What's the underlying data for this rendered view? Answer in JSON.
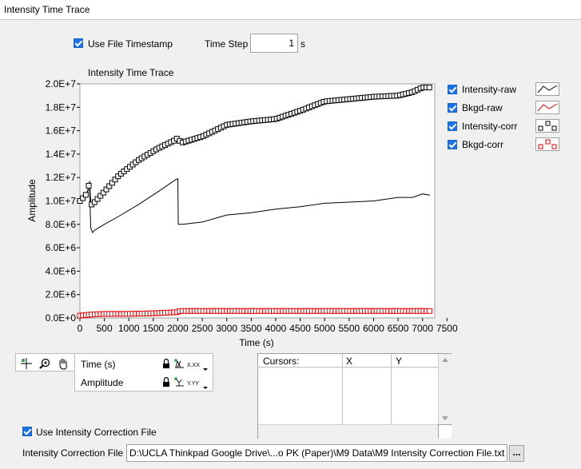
{
  "tab": {
    "title": "Intensity Time Trace"
  },
  "timestamp": {
    "label": "Use File Timestamp",
    "checked": true
  },
  "time_step": {
    "label": "Time Step",
    "value": "1",
    "unit": "s"
  },
  "legend": {
    "items": [
      {
        "label": "Intensity-raw",
        "checked": true,
        "color": "#000000",
        "style": "line"
      },
      {
        "label": "Bkgd-raw",
        "checked": true,
        "color": "#e00000",
        "style": "line"
      },
      {
        "label": "Intensity-corr",
        "checked": true,
        "color": "#000000",
        "style": "square-markers"
      },
      {
        "label": "Bkgd-corr",
        "checked": true,
        "color": "#e00000",
        "style": "square-markers"
      }
    ]
  },
  "scale_legend": {
    "rows": [
      {
        "label": "Time (s)",
        "fmt": "X.XX"
      },
      {
        "label": "Amplitude",
        "fmt": "Y.YY"
      }
    ]
  },
  "cursors": {
    "headers": [
      "Cursors:",
      "X",
      "Y"
    ]
  },
  "correction": {
    "checkbox_label": "Use Intensity Correction File",
    "checked": true,
    "file_label": "Intensity Correction File",
    "file_path": "D:\\UCLA Thinkpad Google Drive\\...o PK (Paper)\\M9 Data\\M9 Intensity Correction File.txt",
    "browse_label": "..."
  },
  "chart_data": {
    "type": "line",
    "title": "Intensity Time Trace",
    "xlabel": "Time (s)",
    "ylabel": "Amplitude",
    "xlim": [
      0,
      7250
    ],
    "ylim": [
      0,
      20000000
    ],
    "xticks": [
      0,
      500,
      1000,
      1500,
      2000,
      2500,
      3000,
      3500,
      4000,
      4500,
      5000,
      5500,
      6000,
      6500,
      7000,
      7500
    ],
    "xtick_labels": [
      "0",
      "500",
      "1000",
      "1500",
      "2000",
      "2500",
      "3000",
      "3500",
      "4000",
      "4500",
      "5000",
      "5500",
      "6000",
      "6500",
      "7000",
      "7500"
    ],
    "yticks": [
      0,
      2000000,
      4000000,
      6000000,
      8000000,
      10000000,
      12000000,
      14000000,
      16000000,
      18000000,
      20000000
    ],
    "ytick_labels": [
      "0.0E+0",
      "2.0E+6",
      "4.0E+6",
      "6.0E+6",
      "8.0E+6",
      "1.0E+7",
      "1.2E+7",
      "1.4E+7",
      "1.6E+7",
      "1.8E+7",
      "2.0E+7"
    ],
    "series": [
      {
        "name": "Intensity-raw",
        "color": "#000000",
        "marker": "none",
        "x": [
          0,
          100,
          150,
          200,
          220,
          260,
          300,
          500,
          800,
          1200,
          1600,
          1950,
          2000,
          2010,
          2100,
          2500,
          3000,
          3500,
          4000,
          4500,
          5000,
          5500,
          6000,
          6500,
          6800,
          7000,
          7150
        ],
        "y": [
          10100000,
          10200000,
          10800000,
          11000000,
          7700000,
          7300000,
          7500000,
          8000000,
          8700000,
          9700000,
          10800000,
          11800000,
          11900000,
          8000000,
          8000000,
          8200000,
          8800000,
          9000000,
          9300000,
          9500000,
          9800000,
          9900000,
          10000000,
          10300000,
          10300000,
          10600000,
          10500000
        ]
      },
      {
        "name": "Bkgd-raw",
        "color": "#e00000",
        "marker": "none",
        "x": [
          0,
          250,
          500,
          1000,
          1500,
          2000,
          2050,
          3000,
          4000,
          5000,
          6000,
          7000,
          7150
        ],
        "y": [
          200000,
          300000,
          350000,
          350000,
          400000,
          500000,
          600000,
          600000,
          600000,
          600000,
          600000,
          600000,
          600000
        ]
      },
      {
        "name": "Intensity-corr",
        "color": "#000000",
        "marker": "square",
        "x": [
          0,
          100,
          150,
          200,
          220,
          260,
          300,
          500,
          800,
          1200,
          1600,
          1950,
          2000,
          2010,
          2100,
          2500,
          3000,
          3500,
          4000,
          4500,
          5000,
          5500,
          6000,
          6500,
          6800,
          7000,
          7150
        ],
        "y": [
          10000000,
          10400000,
          10700000,
          11700000,
          9900000,
          9500000,
          9900000,
          10800000,
          12200000,
          13500000,
          14500000,
          15200000,
          15400000,
          15200000,
          15000000,
          15500000,
          16500000,
          16800000,
          17000000,
          17700000,
          18500000,
          18700000,
          18900000,
          19000000,
          19300000,
          19700000,
          19700000
        ]
      },
      {
        "name": "Bkgd-corr",
        "color": "#e00000",
        "marker": "square",
        "x": [
          0,
          250,
          500,
          1000,
          1500,
          2000,
          2050,
          3000,
          4000,
          5000,
          6000,
          7000,
          7150
        ],
        "y": [
          200000,
          300000,
          350000,
          350000,
          400000,
          500000,
          600000,
          600000,
          600000,
          600000,
          600000,
          600000,
          600000
        ]
      }
    ],
    "grid": false,
    "legend": "right"
  }
}
